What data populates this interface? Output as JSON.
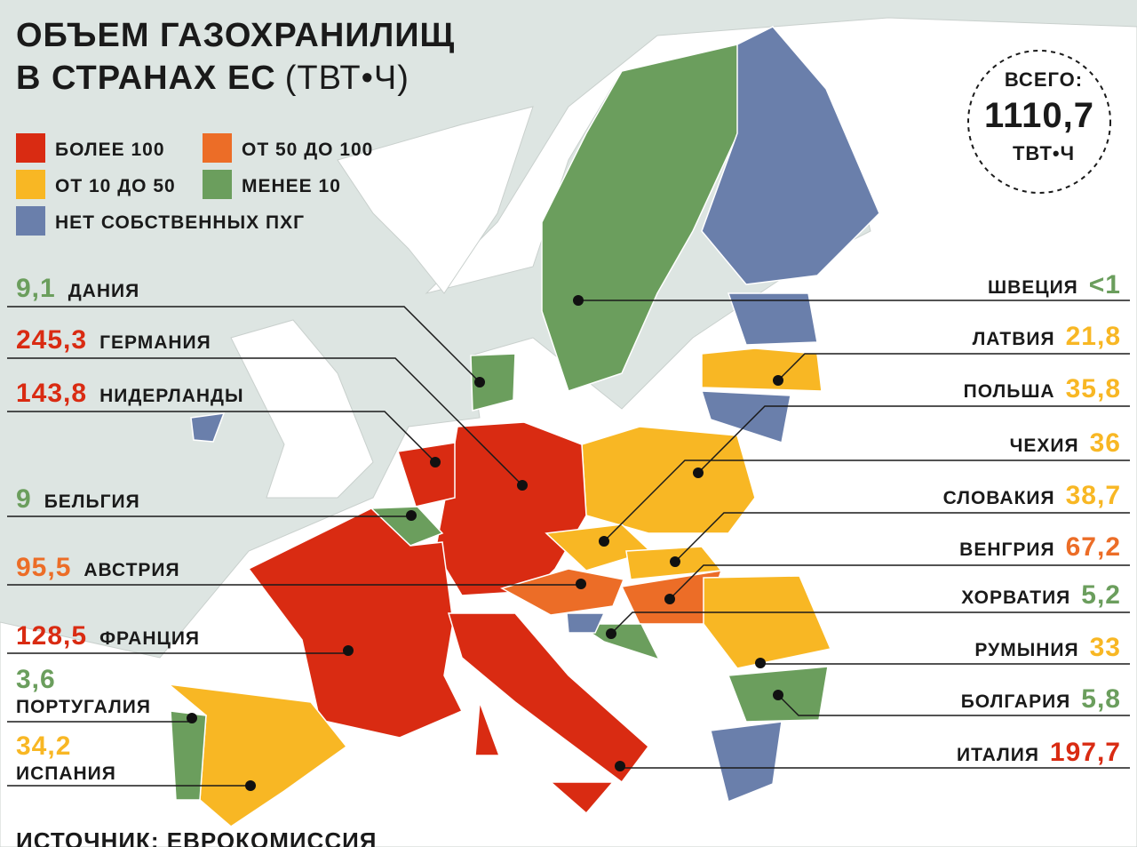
{
  "title": [
    "ОБЪЕМ ГАЗОХРАНИЛИЩ",
    "В СТРАНАХ ЕС"
  ],
  "unit": "(ТВТ•Ч)",
  "total": {
    "label": "ВСЕГО:",
    "value": "1110,7",
    "unit": "ТВТ•Ч"
  },
  "legend": [
    {
      "label": "БОЛЕЕ 100",
      "color": "#d92b12"
    },
    {
      "label": "ОТ 50 ДО 100",
      "color": "#ec6d27"
    },
    {
      "label": "ОТ 10 ДО 50",
      "color": "#f8b724"
    },
    {
      "label": "МЕНЕЕ 10",
      "color": "#6b9e5d"
    },
    {
      "label": "НЕТ СОБСТВЕННЫХ ПХГ",
      "color": "#6a7fab"
    }
  ],
  "left_labels": [
    {
      "name": "ДАНИЯ",
      "value": "9,1",
      "color": "#6b9e5d"
    },
    {
      "name": "ГЕРМАНИЯ",
      "value": "245,3",
      "color": "#d92b12"
    },
    {
      "name": "НИДЕРЛАНДЫ",
      "value": "143,8",
      "color": "#d92b12"
    },
    {
      "name": "БЕЛЬГИЯ",
      "value": "9",
      "color": "#6b9e5d"
    },
    {
      "name": "АВСТРИЯ",
      "value": "95,5",
      "color": "#ec6d27"
    },
    {
      "name": "ФРАНЦИЯ",
      "value": "128,5",
      "color": "#d92b12"
    },
    {
      "name": "ПОРТУГАЛИЯ",
      "value": "3,6",
      "color": "#6b9e5d"
    },
    {
      "name": "ИСПАНИЯ",
      "value": "34,2",
      "color": "#f8b724"
    }
  ],
  "right_labels": [
    {
      "name": "ШВЕЦИЯ",
      "value": "<1",
      "color": "#6b9e5d"
    },
    {
      "name": "ЛАТВИЯ",
      "value": "21,8",
      "color": "#f8b724"
    },
    {
      "name": "ПОЛЬША",
      "value": "35,8",
      "color": "#f8b724"
    },
    {
      "name": "ЧЕХИЯ",
      "value": "36",
      "color": "#f8b724"
    },
    {
      "name": "СЛОВАКИЯ",
      "value": "38,7",
      "color": "#f8b724"
    },
    {
      "name": "ВЕНГРИЯ",
      "value": "67,2",
      "color": "#ec6d27"
    },
    {
      "name": "ХОРВАТИЯ",
      "value": "5,2",
      "color": "#6b9e5d"
    },
    {
      "name": "РУМЫНИЯ",
      "value": "33",
      "color": "#f8b724"
    },
    {
      "name": "БОЛГАРИЯ",
      "value": "5,8",
      "color": "#6b9e5d"
    },
    {
      "name": "ИТАЛИЯ",
      "value": "197,7",
      "color": "#d92b12"
    }
  ],
  "source": "ИСТОЧНИК: ЕВРОКОМИССИЯ"
}
